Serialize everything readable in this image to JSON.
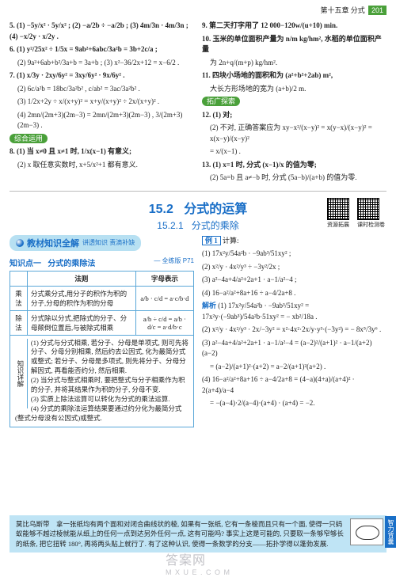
{
  "header": {
    "chapter": "第十五章",
    "topic": "分式",
    "page": "201"
  },
  "leftCol": {
    "p5": "5. (1) −5y/x² · 5y/x² ; (2) −a/2b ÷ −a/2b ; (3) 4m/3n · 4m/3n ; (4) −x/2y · x/2y .",
    "p6_1": "6. (1) y²/25x² ÷ 1/5x = 9ab²+6abc/3a²b = 3b+2c/a ;",
    "p6_2": "(2) 9a²+6ab+b²/3a+b = 3a+b ; (3) x²−36/2x+12 = x−6/2 .",
    "p7_1": "7. (1) x/3y · 2xy/6y² = 3xy/6y² · 9x/6y² .",
    "p7_2": "(2) 6c/a²b = 18bc/3a²b² , c/ab² = 3ac/3a²b² .",
    "p7_3": "(3) 1/2x+2y ÷ x/(x+y)² = x+y/(x+y)² ÷ 2x/(x+y)² .",
    "p7_4": "(4) 2mn/(2m+3)(2m−3) = 2mn/(2m+3)(2m−3) , 3/(2m+3)(2m−3) .",
    "zongheLabel": "综合运用",
    "p8_1": "8. (1) 当 x≠0 且 x≠1 时, 1/x(x−1) 有意义;",
    "p8_2": "(2) x 取任意实数时, x+5/x²+1 都有意义."
  },
  "rightCol": {
    "p9": "9. 第二天打字用了 12 000−120w/(u+10) min.",
    "p10": "10. 玉米的单位面积产量为 n/m kg/hm², 水稻的单位面积产量",
    "p10b": "为 2n+q/(m+p) kg/hm².",
    "p11": "11. 四块小场地的面积和为 (a²+b²+2ab) m²,",
    "p11b": "大长方形场地的宽为 (a+b)/2 m.",
    "tuoLabel": "拓广探索",
    "p12_1": "12. (1) 对;",
    "p12_2": "(2) 不对, 正确答案应为 xy−x²/(x−y)² = x(y−x)/(x−y)² = x(x−y)/(x−y)²",
    "p12_3": "= x/(x−1) .",
    "p13_1": "13. (1) x=1 时, 分式 (x−1)/x 的值为零;",
    "p13_2": "(2) 5a=b 且 a≠−b 时, 分式 (5a−b)/(a+b) 的值为零."
  },
  "section": {
    "num": "15.2",
    "title": "分式的运算",
    "subnum": "15.2.1",
    "subtitle": "分式的乘除",
    "qr1_label": "资源拓展",
    "qr2_label": "课时检测卷"
  },
  "banner": {
    "text": "教材知识全解",
    "sub": "讲透知识  责滴补缺"
  },
  "kp1": {
    "label": "知识点一",
    "title": "分式的乘除法",
    "pageref": "— 全练版 P71"
  },
  "table": {
    "head": [
      "",
      "法则",
      "字母表示"
    ],
    "rows": [
      [
        "乘法",
        "分式乘分式,用分子的积作为积的分子,分母的积作为积的分母",
        "a/b · c/d = a·c/b·d"
      ],
      [
        "除法",
        "分式除以分式,把除式的分子、分母颠倒位置后,与被除式相乘",
        "a/b ÷ c/d = a/b · d/c = a·d/b·c"
      ]
    ]
  },
  "explain": {
    "label": "知识详解",
    "items": [
      "(1) 分式与分式相乘, 若分子、分母是单项式, 则可先将分子、分母分别相乘, 然后约去公因式, 化为最简分式或整式; 若分子、分母是多项式, 则先将分子、分母分解因式, 再看能否约分, 然后相乘.",
      "(2) 当分式与整式相乘时, 要把整式与分子相乘作为积的分子, 并将其结果作为积的分子, 分母不变.",
      "(3) 实质上除法运算可以转化为分式的乘法运算.",
      "(4) 分式的乘除法运算结果要通过约分化为最简分式(整式分母没有公因式)或整式."
    ]
  },
  "example": {
    "label": "例 1",
    "prompt": "计算:",
    "q1": "(1) 17x²y/54a²b · −9ab³/51xy² ;",
    "q2": "(2) x²/y · 4x²/y³ ÷ −3y²/2x ;",
    "q3": "(3) a²−4a+4/a²+2a+1 · a−1/a²−4 ;",
    "q4": "(4) 16−a²/a²+8a+16 ÷ a−4/2a+8 .",
    "solLabel": "解析",
    "s1": "(1) 17x²y/54a²b · −9ab³/51xy² = 17x²y·(−9ab³)/54a²b·51xy² = − xb²/18a .",
    "s2": "(2) x²/y · 4x²/y³ · 2x/−3y² = x²·4x²·2x/y·y³·(−3y²) = − 8x⁵/3y⁶ .",
    "s3": "(3) a²−4a+4/a²+2a+1 · a−1/a²−4 = (a−2)²/(a+1)² · a−1/(a+2)(a−2)",
    "s3b": "= (a−2)/(a+1)²·(a+2) = a−2/(a+1)²(a+2) .",
    "s4": "(4) 16−a²/a²+8a+16 ÷ a−4/2a+8 = (4−a)(4+a)/(a+4)² · 2(a+4)/a−4",
    "s4b": "= −(a−4)·2/(a−4)·(a+4) · (a+4) = −2."
  },
  "footer": {
    "text": "莫比乌斯带　拿一张纸均有两个面和对闭合曲线状的棱, 如果有一张纸, 它有一条棱而且只有一个面, 使得一只蚂蚁能够不越过棱就能从纸上的任何一点到达另外任何一点, 这有可能吗? 事实上这是可能的, 只要取一条够窄够长的纸条, 把它扭转 180°, 再将两头贴上就行了. 有了这种认识, 使得一条数学的分支——拓扑学得以蓬勃发展.",
    "sidetab": "智力背囊"
  },
  "watermark": {
    "big": "答案网",
    "small": "M X U E . C O M"
  }
}
